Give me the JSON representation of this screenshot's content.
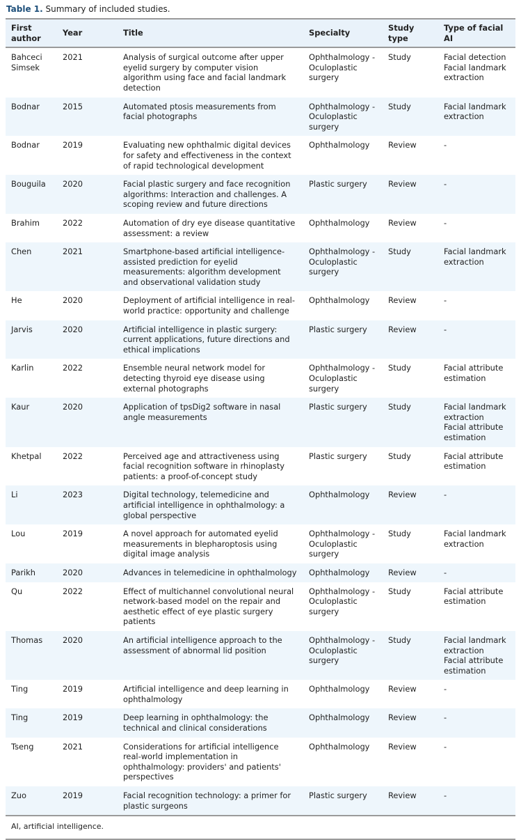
{
  "caption": {
    "label": "Table 1.",
    "text": "Summary of included studies."
  },
  "columns": [
    "First author",
    "Year",
    "Title",
    "Specialty",
    "Study type",
    "Type of facial AI"
  ],
  "rows": [
    [
      "Bahceci Simsek",
      "2021",
      "Analysis of surgical outcome after upper eyelid surgery by computer vision algorithm using face and facial landmark detection",
      "Ophthalmology - Oculoplastic surgery",
      "Study",
      "Facial detection\nFacial landmark extraction"
    ],
    [
      "Bodnar",
      "2015",
      "Automated ptosis measurements from facial photographs",
      "Ophthalmology - Oculoplastic surgery",
      "Study",
      "Facial landmark extraction"
    ],
    [
      "Bodnar",
      "2019",
      "Evaluating new ophthalmic digital devices for safety and effectiveness in the context of rapid technological development",
      "Ophthalmology",
      "Review",
      "-"
    ],
    [
      "Bouguila",
      "2020",
      "Facial plastic surgery and face recognition algorithms: Interaction and challenges. A scoping review and future directions",
      "Plastic surgery",
      "Review",
      "-"
    ],
    [
      "Brahim",
      "2022",
      "Automation of dry eye disease quantitative assessment: a review",
      "Ophthalmology",
      "Review",
      "-"
    ],
    [
      "Chen",
      "2021",
      "Smartphone-based artificial intelligence-assisted prediction for eyelid measurements: algorithm development and observational validation study",
      "Ophthalmology - Oculoplastic surgery",
      "Study",
      "Facial landmark extraction"
    ],
    [
      "He",
      "2020",
      "Deployment of artificial intelligence in real-world practice: opportunity and challenge",
      "Ophthalmology",
      "Review",
      "-"
    ],
    [
      "Jarvis",
      "2020",
      "Artificial intelligence in plastic surgery: current applications, future directions and ethical implications",
      "Plastic surgery",
      "Review",
      "-"
    ],
    [
      "Karlin",
      "2022",
      "Ensemble neural network model for detecting thyroid eye disease using external photographs",
      "Ophthalmology - Oculoplastic surgery",
      "Study",
      "Facial attribute estimation"
    ],
    [
      "Kaur",
      "2020",
      "Application of tpsDig2 software in nasal angle measurements",
      "Plastic surgery",
      "Study",
      "Facial landmark extraction\nFacial attribute estimation"
    ],
    [
      "Khetpal",
      "2022",
      "Perceived age and attractiveness using facial recognition software in rhinoplasty patients: a proof-of-concept study",
      "Plastic surgery",
      "Study",
      "Facial attribute estimation"
    ],
    [
      "Li",
      "2023",
      "Digital technology, telemedicine and artificial intelligence in ophthalmology: a global perspective",
      "Ophthalmology",
      "Review",
      "-"
    ],
    [
      "Lou",
      "2019",
      "A novel approach for automated eyelid measurements in blepharoptosis using digital image analysis",
      "Ophthalmology - Oculoplastic surgery",
      "Study",
      "Facial landmark extraction"
    ],
    [
      "Parikh",
      "2020",
      "Advances in telemedicine in ophthalmology",
      "Ophthalmology",
      "Review",
      "-"
    ],
    [
      "Qu",
      "2022",
      "Effect of multichannel convolutional neural network-based model on the repair and aesthetic effect of eye plastic surgery patients",
      "Ophthalmology - Oculoplastic surgery",
      "Study",
      "Facial attribute estimation"
    ],
    [
      "Thomas",
      "2020",
      "An artificial intelligence approach to the assessment of abnormal lid position",
      "Ophthalmology - Oculoplastic surgery",
      "Study",
      "Facial landmark extraction\nFacial attribute estimation"
    ],
    [
      "Ting",
      "2019",
      "Artificial intelligence and deep learning in ophthalmology",
      "Ophthalmology",
      "Review",
      "-"
    ],
    [
      "Ting",
      "2019",
      "Deep learning in ophthalmology: the technical and clinical considerations",
      "Ophthalmology",
      "Review",
      "-"
    ],
    [
      "Tseng",
      "2021",
      "Considerations for artificial intelligence real-world implementation in ophthalmology: providers' and patients' perspectives",
      "Ophthalmology",
      "Review",
      "-"
    ],
    [
      "Zuo",
      "2019",
      "Facial recognition technology: a primer for plastic surgeons",
      "Plastic surgery",
      "Review",
      "-"
    ]
  ],
  "footnote": "AI, artificial intelligence."
}
